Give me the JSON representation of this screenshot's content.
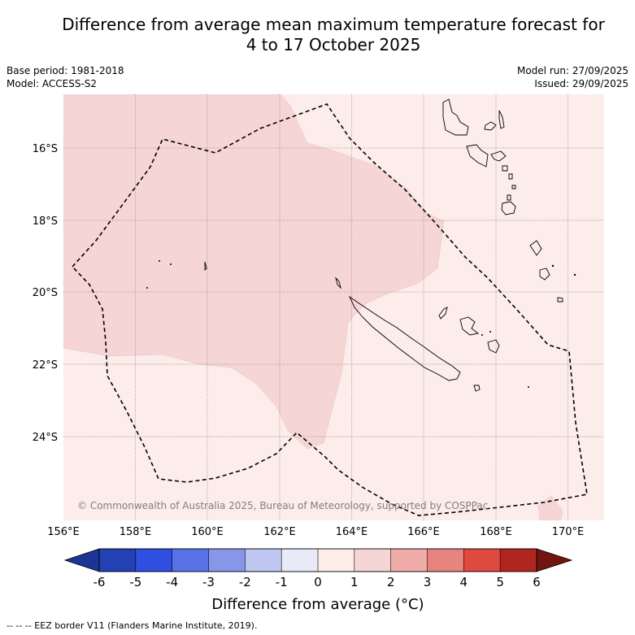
{
  "title": {
    "line1": "Difference from average mean maximum temperature forecast for",
    "line2": "4 to 17 October 2025"
  },
  "meta": {
    "base_period": "Base period: 1981-2018",
    "model": "Model: ACCESS-S2",
    "model_run": "Model run: 27/09/2025",
    "issued": "Issued: 29/09/2025"
  },
  "map": {
    "lon_labels": [
      "156°E",
      "158°E",
      "160°E",
      "162°E",
      "164°E",
      "166°E",
      "168°E",
      "170°E"
    ],
    "lat_labels": [
      "16°S",
      "18°S",
      "20°S",
      "22°S",
      "24°S"
    ],
    "copyright": "© Commonwealth of Australia 2025, Bureau of Meteorology, supported by COSPPac",
    "colors": {
      "anomaly_0_1": "#fcecea",
      "anomaly_1_2": "#f5d6d5",
      "background": "#fcecea"
    }
  },
  "colorbar": {
    "ticks": [
      "-6",
      "-5",
      "-4",
      "-3",
      "-2",
      "-1",
      "0",
      "1",
      "2",
      "3",
      "4",
      "5",
      "6"
    ],
    "title": "Difference from average (°C)",
    "colors": [
      "#1c3494",
      "#2341b4",
      "#2f4fe0",
      "#5a72e8",
      "#8896ea",
      "#c0c6f2",
      "#e8eaf8",
      "#fcecea",
      "#f5d6d5",
      "#f0aca9",
      "#e8847f",
      "#de4a40",
      "#b0261f",
      "#70150f"
    ]
  },
  "footnote": "--  --  -- EEZ border V11 (Flanders Marine Institute, 2019)."
}
